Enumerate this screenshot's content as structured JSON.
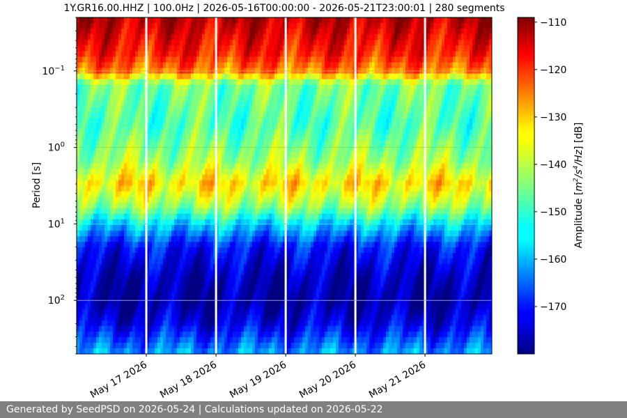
{
  "chart_data": {
    "type": "heatmap",
    "title": "1Y.GR16.00.HHZ | 100.0Hz | 2026-05-16T00:00:00 - 2026-05-21T23:00:01 | 280 segments",
    "ylabel": "Period [s]",
    "xlabel": "",
    "y_scale": "log",
    "yticks": [
      {
        "value": 0.1,
        "base": "10",
        "exp": "−1"
      },
      {
        "value": 1,
        "base": "10",
        "exp": "0"
      },
      {
        "value": 10,
        "base": "10",
        "exp": "1"
      },
      {
        "value": 100,
        "base": "10",
        "exp": "2"
      }
    ],
    "xticks": [
      "May 17 2026",
      "May 18 2026",
      "May 19 2026",
      "May 20 2026",
      "May 21 2026"
    ],
    "x_range": [
      "2026-05-16T00:00:00",
      "2026-05-21T23:00:01"
    ],
    "y_range_s": [
      0.02,
      500
    ],
    "data_gaps": [
      "2026-05-17",
      "2026-05-18",
      "2026-05-19",
      "2026-05-20",
      "2026-05-21"
    ],
    "grid": true,
    "colorbar": {
      "label": "Amplitude [m²/s⁴/Hz] [dB]",
      "label_prefix": "Amplitude [",
      "label_m": "m",
      "label_sup2": "2",
      "label_s": "/s",
      "label_sup4": "4",
      "label_hz": "/Hz",
      "label_suffix": "] [dB]",
      "ticks": [
        "−110",
        "−120",
        "−130",
        "−140",
        "−150",
        "−160",
        "−170"
      ],
      "min": -180,
      "max": -109,
      "colormap": "jet"
    },
    "period_profile_db": [
      {
        "period": 0.02,
        "db": -113
      },
      {
        "period": 0.06,
        "db": -120
      },
      {
        "period": 0.1,
        "db": -127
      },
      {
        "period": 0.15,
        "db": -145
      },
      {
        "period": 0.5,
        "db": -148
      },
      {
        "period": 1.5,
        "db": -142
      },
      {
        "period": 3,
        "db": -133
      },
      {
        "period": 6,
        "db": -143
      },
      {
        "period": 10,
        "db": -156
      },
      {
        "period": 20,
        "db": -170
      },
      {
        "period": 50,
        "db": -176
      },
      {
        "period": 100,
        "db": -178
      },
      {
        "period": 200,
        "db": -173
      },
      {
        "period": 500,
        "db": -160
      }
    ]
  },
  "footer": {
    "text": "Generated by SeedPSD on 2026-05-24 | Calculations updated on 2026-05-22"
  }
}
